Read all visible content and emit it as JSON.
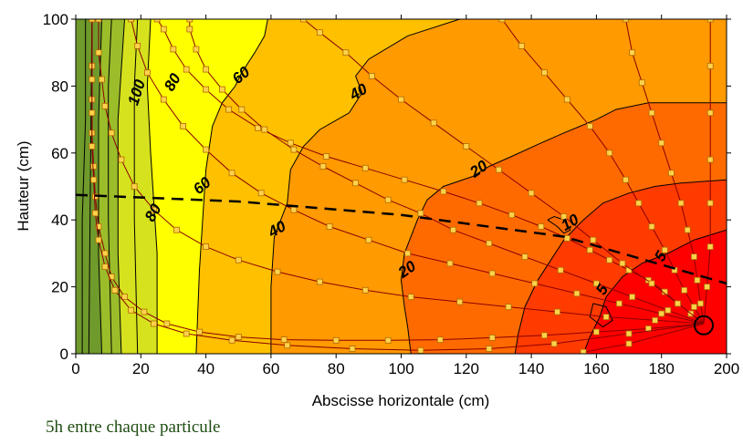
{
  "chart_data": {
    "type": "contour",
    "xlabel": "Abscisse horizontale (cm)",
    "ylabel": "Hauteur (cm)",
    "xlim": [
      0,
      200
    ],
    "ylim": [
      0,
      100
    ],
    "x_ticks": [
      0,
      20,
      40,
      60,
      80,
      100,
      120,
      140,
      160,
      180,
      200
    ],
    "y_ticks": [
      0,
      20,
      40,
      60,
      80,
      100
    ],
    "colors": {
      "dark_green": "#6f9a2c",
      "olive": "#9bbd2a",
      "yellow_green": "#d6e21d",
      "yellow": "#ffff00",
      "light_orange": "#ffc000",
      "orange": "#ff9a00",
      "dark_orange": "#ff6a00",
      "red_orange": "#ff3b00",
      "red": "#ff0000",
      "marker_fill": "#ffd24a",
      "trajectory": "#8b0000"
    },
    "contour_labels": [
      {
        "text": "100",
        "x": 19,
        "y": 78
      },
      {
        "text": "80",
        "x": 30,
        "y": 81
      },
      {
        "text": "60",
        "x": 51,
        "y": 83
      },
      {
        "text": "40",
        "x": 87,
        "y": 78
      },
      {
        "text": "20",
        "x": 124,
        "y": 55
      },
      {
        "text": "80",
        "x": 24,
        "y": 42
      },
      {
        "text": "60",
        "x": 39,
        "y": 50
      },
      {
        "text": "40",
        "x": 62,
        "y": 37
      },
      {
        "text": "20",
        "x": 102,
        "y": 25
      },
      {
        "text": "10",
        "x": 152,
        "y": 39
      },
      {
        "text": "5",
        "x": 180,
        "y": 29
      },
      {
        "text": "5",
        "x": 162,
        "y": 19
      }
    ],
    "dashed_line": [
      [
        0,
        47.5
      ],
      [
        50,
        45.5
      ],
      [
        100,
        41.5
      ],
      [
        150,
        35
      ],
      [
        200,
        21
      ]
    ],
    "circle_marker": {
      "x": 193,
      "y": 8.5
    },
    "trajectories": [
      [
        [
          193,
          9
        ],
        [
          189,
          12
        ],
        [
          185,
          15
        ],
        [
          181,
          18.5
        ],
        [
          176,
          22
        ],
        [
          170,
          25
        ],
        [
          164,
          28
        ],
        [
          158,
          31
        ],
        [
          151,
          34.5
        ],
        [
          143,
          38
        ],
        [
          134,
          41.5
        ],
        [
          124,
          45
        ],
        [
          113,
          48.5
        ],
        [
          101,
          52
        ],
        [
          89,
          55.5
        ],
        [
          77,
          59
        ],
        [
          66,
          63
        ],
        [
          56,
          67.5
        ],
        [
          47,
          73
        ],
        [
          40,
          79
        ],
        [
          34,
          85
        ],
        [
          30,
          91
        ],
        [
          27,
          97
        ],
        [
          25,
          100
        ]
      ],
      [
        [
          193,
          9
        ],
        [
          190,
          14
        ],
        [
          187,
          19
        ],
        [
          184,
          25
        ],
        [
          181,
          31
        ],
        [
          177,
          38
        ],
        [
          173,
          45
        ],
        [
          169,
          52
        ],
        [
          164,
          60
        ],
        [
          158,
          68
        ],
        [
          151,
          76
        ],
        [
          144,
          84
        ],
        [
          137,
          92
        ],
        [
          131,
          100
        ]
      ],
      [
        [
          193,
          9
        ],
        [
          192,
          15
        ],
        [
          191,
          22
        ],
        [
          190,
          29
        ],
        [
          188,
          37
        ],
        [
          186,
          45
        ],
        [
          183,
          54
        ],
        [
          180,
          63
        ],
        [
          177,
          72
        ],
        [
          174,
          81
        ],
        [
          171,
          90
        ],
        [
          169,
          100
        ]
      ],
      [
        [
          193,
          9
        ],
        [
          194,
          20
        ],
        [
          195,
          32
        ],
        [
          195,
          45
        ],
        [
          195,
          58
        ],
        [
          195,
          72
        ],
        [
          195,
          86
        ],
        [
          195,
          100
        ]
      ],
      [
        [
          193,
          9
        ],
        [
          185,
          15
        ],
        [
          177,
          21
        ],
        [
          168,
          27
        ],
        [
          159,
          34
        ],
        [
          150,
          41
        ],
        [
          140,
          48
        ],
        [
          130,
          55
        ],
        [
          120,
          62
        ],
        [
          110,
          69
        ],
        [
          100,
          76
        ],
        [
          91,
          83
        ],
        [
          83,
          90
        ],
        [
          75,
          96
        ],
        [
          70,
          100
        ]
      ],
      [
        [
          193,
          9
        ],
        [
          182,
          13
        ],
        [
          171,
          17
        ],
        [
          160,
          21
        ],
        [
          149,
          25
        ],
        [
          138,
          29
        ],
        [
          127,
          33
        ],
        [
          116,
          37
        ],
        [
          106,
          42
        ],
        [
          96,
          46
        ],
        [
          86,
          51
        ],
        [
          76,
          56
        ],
        [
          67,
          61
        ],
        [
          58,
          67
        ],
        [
          51,
          73
        ],
        [
          45,
          79
        ],
        [
          40,
          85
        ],
        [
          37,
          91
        ],
        [
          35,
          97
        ],
        [
          35,
          100
        ]
      ],
      [
        [
          193,
          9
        ],
        [
          180,
          12
        ],
        [
          167,
          15
        ],
        [
          154,
          18
        ],
        [
          141,
          21
        ],
        [
          128,
          24
        ],
        [
          115,
          27
        ],
        [
          102,
          30
        ],
        [
          90,
          34
        ],
        [
          78,
          38
        ],
        [
          67,
          43
        ],
        [
          57,
          48
        ],
        [
          48,
          54
        ],
        [
          40,
          61
        ],
        [
          33,
          68
        ],
        [
          27,
          76
        ],
        [
          22,
          84
        ],
        [
          19,
          92
        ],
        [
          17,
          100
        ]
      ],
      [
        [
          193,
          9
        ],
        [
          178,
          10
        ],
        [
          163,
          11
        ],
        [
          148,
          12.5
        ],
        [
          133,
          14
        ],
        [
          118,
          15.5
        ],
        [
          103,
          17
        ],
        [
          89,
          19
        ],
        [
          75,
          21.5
        ],
        [
          62,
          24.5
        ],
        [
          50,
          28
        ],
        [
          40,
          32
        ],
        [
          31,
          37
        ],
        [
          24,
          43
        ],
        [
          18,
          50
        ],
        [
          14,
          58
        ],
        [
          11,
          66
        ],
        [
          9,
          74
        ],
        [
          8,
          82
        ],
        [
          7,
          90
        ],
        [
          7,
          100
        ]
      ],
      [
        [
          193,
          9
        ],
        [
          176,
          7.5
        ],
        [
          160,
          6.5
        ],
        [
          144,
          5.5
        ],
        [
          128,
          4.8
        ],
        [
          112,
          4.2
        ],
        [
          96,
          4
        ],
        [
          80,
          4
        ],
        [
          64,
          4.2
        ],
        [
          50,
          5
        ],
        [
          38,
          6.5
        ],
        [
          28,
          9
        ],
        [
          21,
          12.5
        ],
        [
          15,
          17
        ],
        [
          11,
          23
        ],
        [
          9,
          30
        ],
        [
          7,
          38
        ],
        [
          6,
          47
        ],
        [
          5.5,
          56
        ],
        [
          5,
          66
        ],
        [
          5,
          76
        ],
        [
          5,
          86
        ],
        [
          5,
          100
        ]
      ],
      [
        [
          193,
          9
        ],
        [
          170,
          6
        ],
        [
          147,
          3
        ],
        [
          127,
          1.5
        ],
        [
          106,
          1
        ],
        [
          85,
          1.5
        ],
        [
          65,
          2.5
        ],
        [
          48,
          4
        ],
        [
          34,
          6
        ],
        [
          24,
          9
        ],
        [
          17,
          13
        ],
        [
          12,
          19
        ],
        [
          9,
          26
        ],
        [
          7,
          34
        ],
        [
          6,
          42
        ],
        [
          5.5,
          52
        ],
        [
          5,
          62
        ],
        [
          5,
          72
        ],
        [
          5,
          82
        ],
        [
          5,
          100
        ]
      ],
      [
        [
          193,
          9
        ],
        [
          170,
          3
        ],
        [
          156,
          0.5
        ]
      ]
    ],
    "caption": "5h entre chaque particule"
  }
}
